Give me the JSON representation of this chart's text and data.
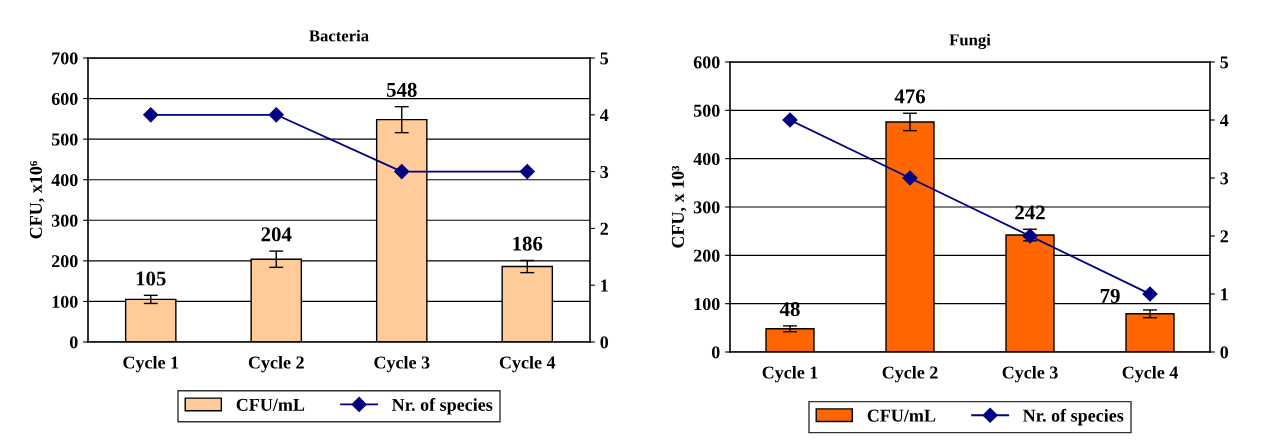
{
  "chart_data": [
    {
      "type": "bar",
      "title": "Bacteria",
      "ylabel": "CFU, x10⁶",
      "categories": [
        "Cycle 1",
        "Cycle 2",
        "Cycle 3",
        "Cycle 4"
      ],
      "series": [
        {
          "name": "CFU/mL",
          "color": "#ffcc99",
          "values": [
            105,
            204,
            548,
            186
          ],
          "errors": [
            10,
            20,
            32,
            15
          ],
          "value_labels": [
            "105",
            "204",
            "548",
            "186"
          ]
        },
        {
          "name": "Nr. of species",
          "type": "line",
          "axis": "y2",
          "color": "#000080",
          "values": [
            4,
            4,
            3,
            3
          ]
        }
      ],
      "ylim": [
        0,
        700
      ],
      "yticks": [
        0,
        100,
        200,
        300,
        400,
        500,
        600,
        700
      ],
      "y2lim": [
        0,
        5
      ],
      "y2ticks": [
        0,
        1,
        2,
        3,
        4,
        5
      ],
      "grid": "y",
      "legend": "bottom",
      "marker": "diamond",
      "line_style": "solid"
    },
    {
      "type": "bar",
      "title": "Fungi",
      "ylabel": "CFU, x 10³",
      "categories": [
        "Cycle 1",
        "Cycle 2",
        "Cycle 3",
        "Cycle 4"
      ],
      "series": [
        {
          "name": "CFU/mL",
          "color": "#ff6600",
          "values": [
            48,
            476,
            242,
            79
          ],
          "errors": [
            6,
            18,
            12,
            8
          ],
          "value_labels": [
            "48",
            "476",
            "242",
            "79"
          ]
        },
        {
          "name": "Nr. of species",
          "type": "line",
          "axis": "y2",
          "color": "#000080",
          "values": [
            4,
            3,
            2,
            1
          ]
        }
      ],
      "ylim": [
        0,
        600
      ],
      "yticks": [
        0,
        100,
        200,
        300,
        400,
        500,
        600
      ],
      "y2lim": [
        0,
        5
      ],
      "y2ticks": [
        0,
        1,
        2,
        3,
        4,
        5
      ],
      "grid": "y",
      "legend": "bottom",
      "marker": "diamond",
      "line_style": "solid"
    }
  ]
}
